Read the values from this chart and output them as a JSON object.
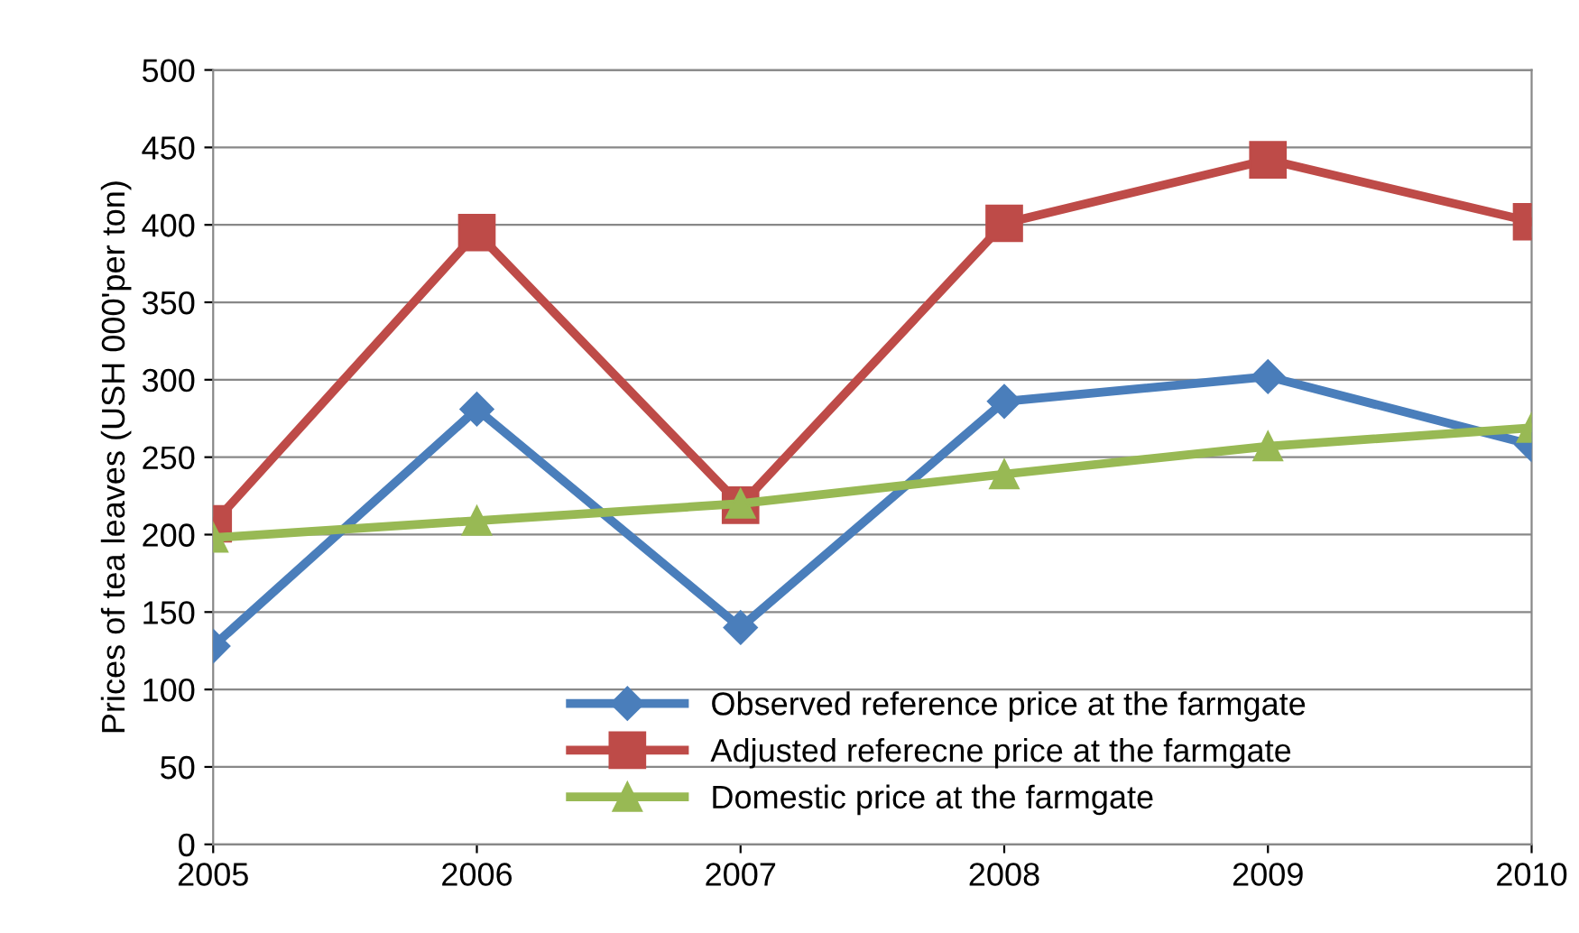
{
  "chart_data": {
    "type": "line",
    "ylabel": "Prices of tea leaves (USH 000'per ton)",
    "x": [
      2005,
      2006,
      2007,
      2008,
      2009,
      2010
    ],
    "series": [
      {
        "name": "Observed reference price at the farmgate",
        "color": "#4a7ebb",
        "marker": "diamond",
        "values": [
          128,
          281,
          140,
          286,
          302,
          258
        ]
      },
      {
        "name": "Adjusted referecne price at the farmgate",
        "color": "#be4b48",
        "marker": "square",
        "values": [
          207,
          395,
          219,
          401,
          442,
          402
        ]
      },
      {
        "name": "Domestic price at the farmgate",
        "color": "#98b954",
        "marker": "triangle",
        "values": [
          198,
          209,
          220,
          239,
          257,
          269
        ]
      }
    ],
    "xlim": [
      2005,
      2010
    ],
    "xticks": [
      2005,
      2006,
      2007,
      2008,
      2009,
      2010
    ],
    "ylim": [
      0,
      500
    ],
    "yticks": [
      0,
      50,
      100,
      150,
      200,
      250,
      300,
      350,
      400,
      450,
      500
    ],
    "grid": "y",
    "legend": "bottom",
    "line_style": "solid"
  }
}
